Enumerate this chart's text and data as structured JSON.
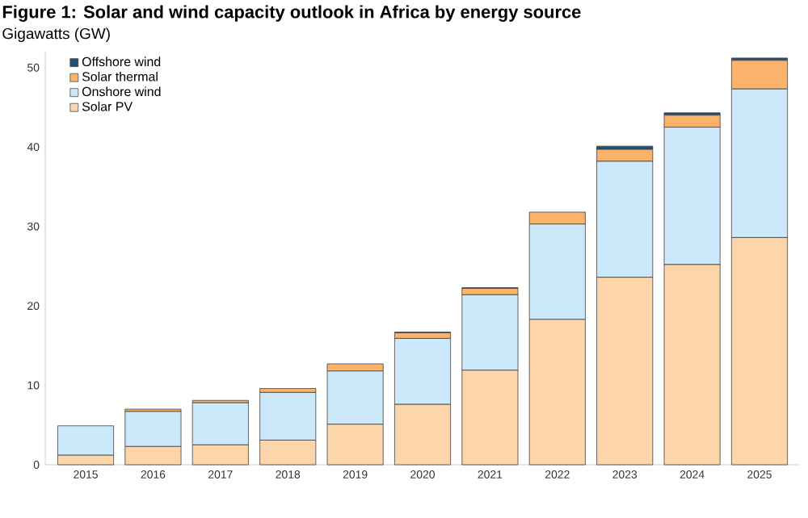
{
  "chart_data": {
    "type": "bar",
    "stacked": true,
    "title": "Figure 1: Solar and wind capacity outlook in Africa by energy source",
    "ylabel": "Gigawatts (GW)",
    "categories": [
      "2015",
      "2016",
      "2017",
      "2018",
      "2019",
      "2020",
      "2021",
      "2022",
      "2023",
      "2024",
      "2025"
    ],
    "series": [
      {
        "name": "Solar PV",
        "color": "#fdd5aa",
        "values": [
          1.2,
          2.3,
          2.5,
          3.1,
          5.1,
          7.6,
          11.9,
          18.3,
          23.6,
          25.2,
          28.6
        ]
      },
      {
        "name": "Onshore wind",
        "color": "#cce9fb",
        "values": [
          3.7,
          4.4,
          5.3,
          6.0,
          6.7,
          8.3,
          9.5,
          12.0,
          14.6,
          17.3,
          18.7
        ]
      },
      {
        "name": "Solar thermal",
        "color": "#fbb26b",
        "values": [
          null,
          0.3,
          0.3,
          0.5,
          0.9,
          0.7,
          0.8,
          1.5,
          1.5,
          1.5,
          3.6
        ]
      },
      {
        "name": "Offshore wind",
        "color": "#1f4e79",
        "values": [
          0,
          0,
          0,
          0,
          0,
          0.1,
          0.1,
          0,
          0.4,
          0.3,
          0.3
        ]
      }
    ],
    "ylim": [
      0,
      52
    ],
    "yticks": [
      0,
      10,
      20,
      30,
      40,
      50
    ],
    "legend": "top left"
  }
}
